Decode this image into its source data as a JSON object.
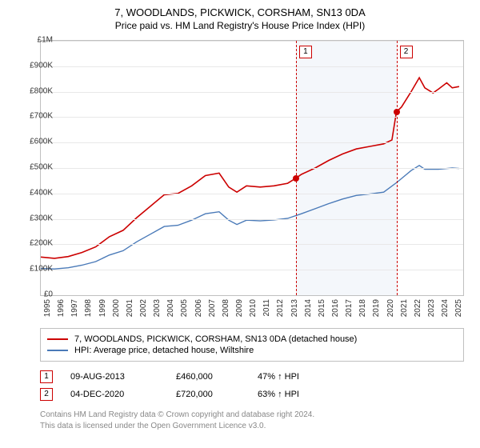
{
  "title": "7, WOODLANDS, PICKWICK, CORSHAM, SN13 0DA",
  "subtitle": "Price paid vs. HM Land Registry's House Price Index (HPI)",
  "chart": {
    "type": "line",
    "background_color": "#ffffff",
    "grid_color": "#e8e8e8",
    "border_color": "#c0c0c0",
    "shade_color": "#eef2f9",
    "xlim": [
      1995,
      2025.8
    ],
    "ylim": [
      0,
      1000000
    ],
    "ytick_step": 100000,
    "yticks": [
      "£0",
      "£100K",
      "£200K",
      "£300K",
      "£400K",
      "£500K",
      "£600K",
      "£700K",
      "£800K",
      "£900K",
      "£1M"
    ],
    "xticks": [
      1995,
      1996,
      1997,
      1998,
      1999,
      2000,
      2001,
      2002,
      2003,
      2004,
      2005,
      2006,
      2007,
      2008,
      2009,
      2010,
      2011,
      2012,
      2013,
      2014,
      2015,
      2016,
      2017,
      2018,
      2019,
      2020,
      2021,
      2022,
      2023,
      2024,
      2025
    ],
    "label_fontsize": 10,
    "series": [
      {
        "name": "property",
        "label": "7, WOODLANDS, PICKWICK, CORSHAM, SN13 0DA (detached house)",
        "color": "#cc0000",
        "line_width": 1.6,
        "points": [
          [
            1995,
            150000
          ],
          [
            1996,
            145000
          ],
          [
            1997,
            152000
          ],
          [
            1998,
            168000
          ],
          [
            1999,
            190000
          ],
          [
            2000,
            230000
          ],
          [
            2001,
            255000
          ],
          [
            2002,
            305000
          ],
          [
            2003,
            350000
          ],
          [
            2004,
            395000
          ],
          [
            2005,
            400000
          ],
          [
            2006,
            430000
          ],
          [
            2007,
            470000
          ],
          [
            2008,
            480000
          ],
          [
            2008.7,
            425000
          ],
          [
            2009.3,
            405000
          ],
          [
            2010,
            430000
          ],
          [
            2011,
            425000
          ],
          [
            2012,
            430000
          ],
          [
            2013,
            440000
          ],
          [
            2013.6,
            460000
          ],
          [
            2014,
            475000
          ],
          [
            2015,
            500000
          ],
          [
            2016,
            530000
          ],
          [
            2017,
            555000
          ],
          [
            2018,
            575000
          ],
          [
            2019,
            585000
          ],
          [
            2020,
            595000
          ],
          [
            2020.6,
            610000
          ],
          [
            2020.93,
            720000
          ],
          [
            2021.3,
            740000
          ],
          [
            2022,
            800000
          ],
          [
            2022.6,
            855000
          ],
          [
            2023,
            815000
          ],
          [
            2023.6,
            795000
          ],
          [
            2024,
            810000
          ],
          [
            2024.6,
            835000
          ],
          [
            2025,
            815000
          ],
          [
            2025.5,
            820000
          ]
        ]
      },
      {
        "name": "hpi",
        "label": "HPI: Average price, detached house, Wiltshire",
        "color": "#4a7ab8",
        "line_width": 1.4,
        "points": [
          [
            1995,
            105000
          ],
          [
            1996,
            103000
          ],
          [
            1997,
            108000
          ],
          [
            1998,
            118000
          ],
          [
            1999,
            132000
          ],
          [
            2000,
            158000
          ],
          [
            2001,
            175000
          ],
          [
            2002,
            210000
          ],
          [
            2003,
            240000
          ],
          [
            2004,
            270000
          ],
          [
            2005,
            275000
          ],
          [
            2006,
            295000
          ],
          [
            2007,
            320000
          ],
          [
            2008,
            328000
          ],
          [
            2008.7,
            295000
          ],
          [
            2009.3,
            278000
          ],
          [
            2010,
            295000
          ],
          [
            2011,
            292000
          ],
          [
            2012,
            296000
          ],
          [
            2013,
            302000
          ],
          [
            2014,
            320000
          ],
          [
            2015,
            340000
          ],
          [
            2016,
            360000
          ],
          [
            2017,
            378000
          ],
          [
            2018,
            392000
          ],
          [
            2019,
            398000
          ],
          [
            2020,
            405000
          ],
          [
            2021,
            445000
          ],
          [
            2022,
            490000
          ],
          [
            2022.6,
            510000
          ],
          [
            2023,
            495000
          ],
          [
            2024,
            495000
          ],
          [
            2025,
            500000
          ],
          [
            2025.5,
            498000
          ]
        ]
      }
    ],
    "shaded_regions": [
      {
        "from": 2013.6,
        "to": 2020.93
      }
    ],
    "markers": [
      {
        "id": "1",
        "x": 2013.6,
        "y": 460000,
        "dot_color": "#cc0000"
      },
      {
        "id": "2",
        "x": 2020.93,
        "y": 720000,
        "dot_color": "#cc0000"
      }
    ]
  },
  "legend": {
    "items": [
      {
        "color": "#cc0000",
        "label": "7, WOODLANDS, PICKWICK, CORSHAM, SN13 0DA (detached house)"
      },
      {
        "color": "#4a7ab8",
        "label": "HPI: Average price, detached house, Wiltshire"
      }
    ]
  },
  "sales": [
    {
      "num": "1",
      "date": "09-AUG-2013",
      "price": "£460,000",
      "hpi": "47% ↑ HPI"
    },
    {
      "num": "2",
      "date": "04-DEC-2020",
      "price": "£720,000",
      "hpi": "63% ↑ HPI"
    }
  ],
  "footer": {
    "line1": "Contains HM Land Registry data © Crown copyright and database right 2024.",
    "line2": "This data is licensed under the Open Government Licence v3.0."
  }
}
